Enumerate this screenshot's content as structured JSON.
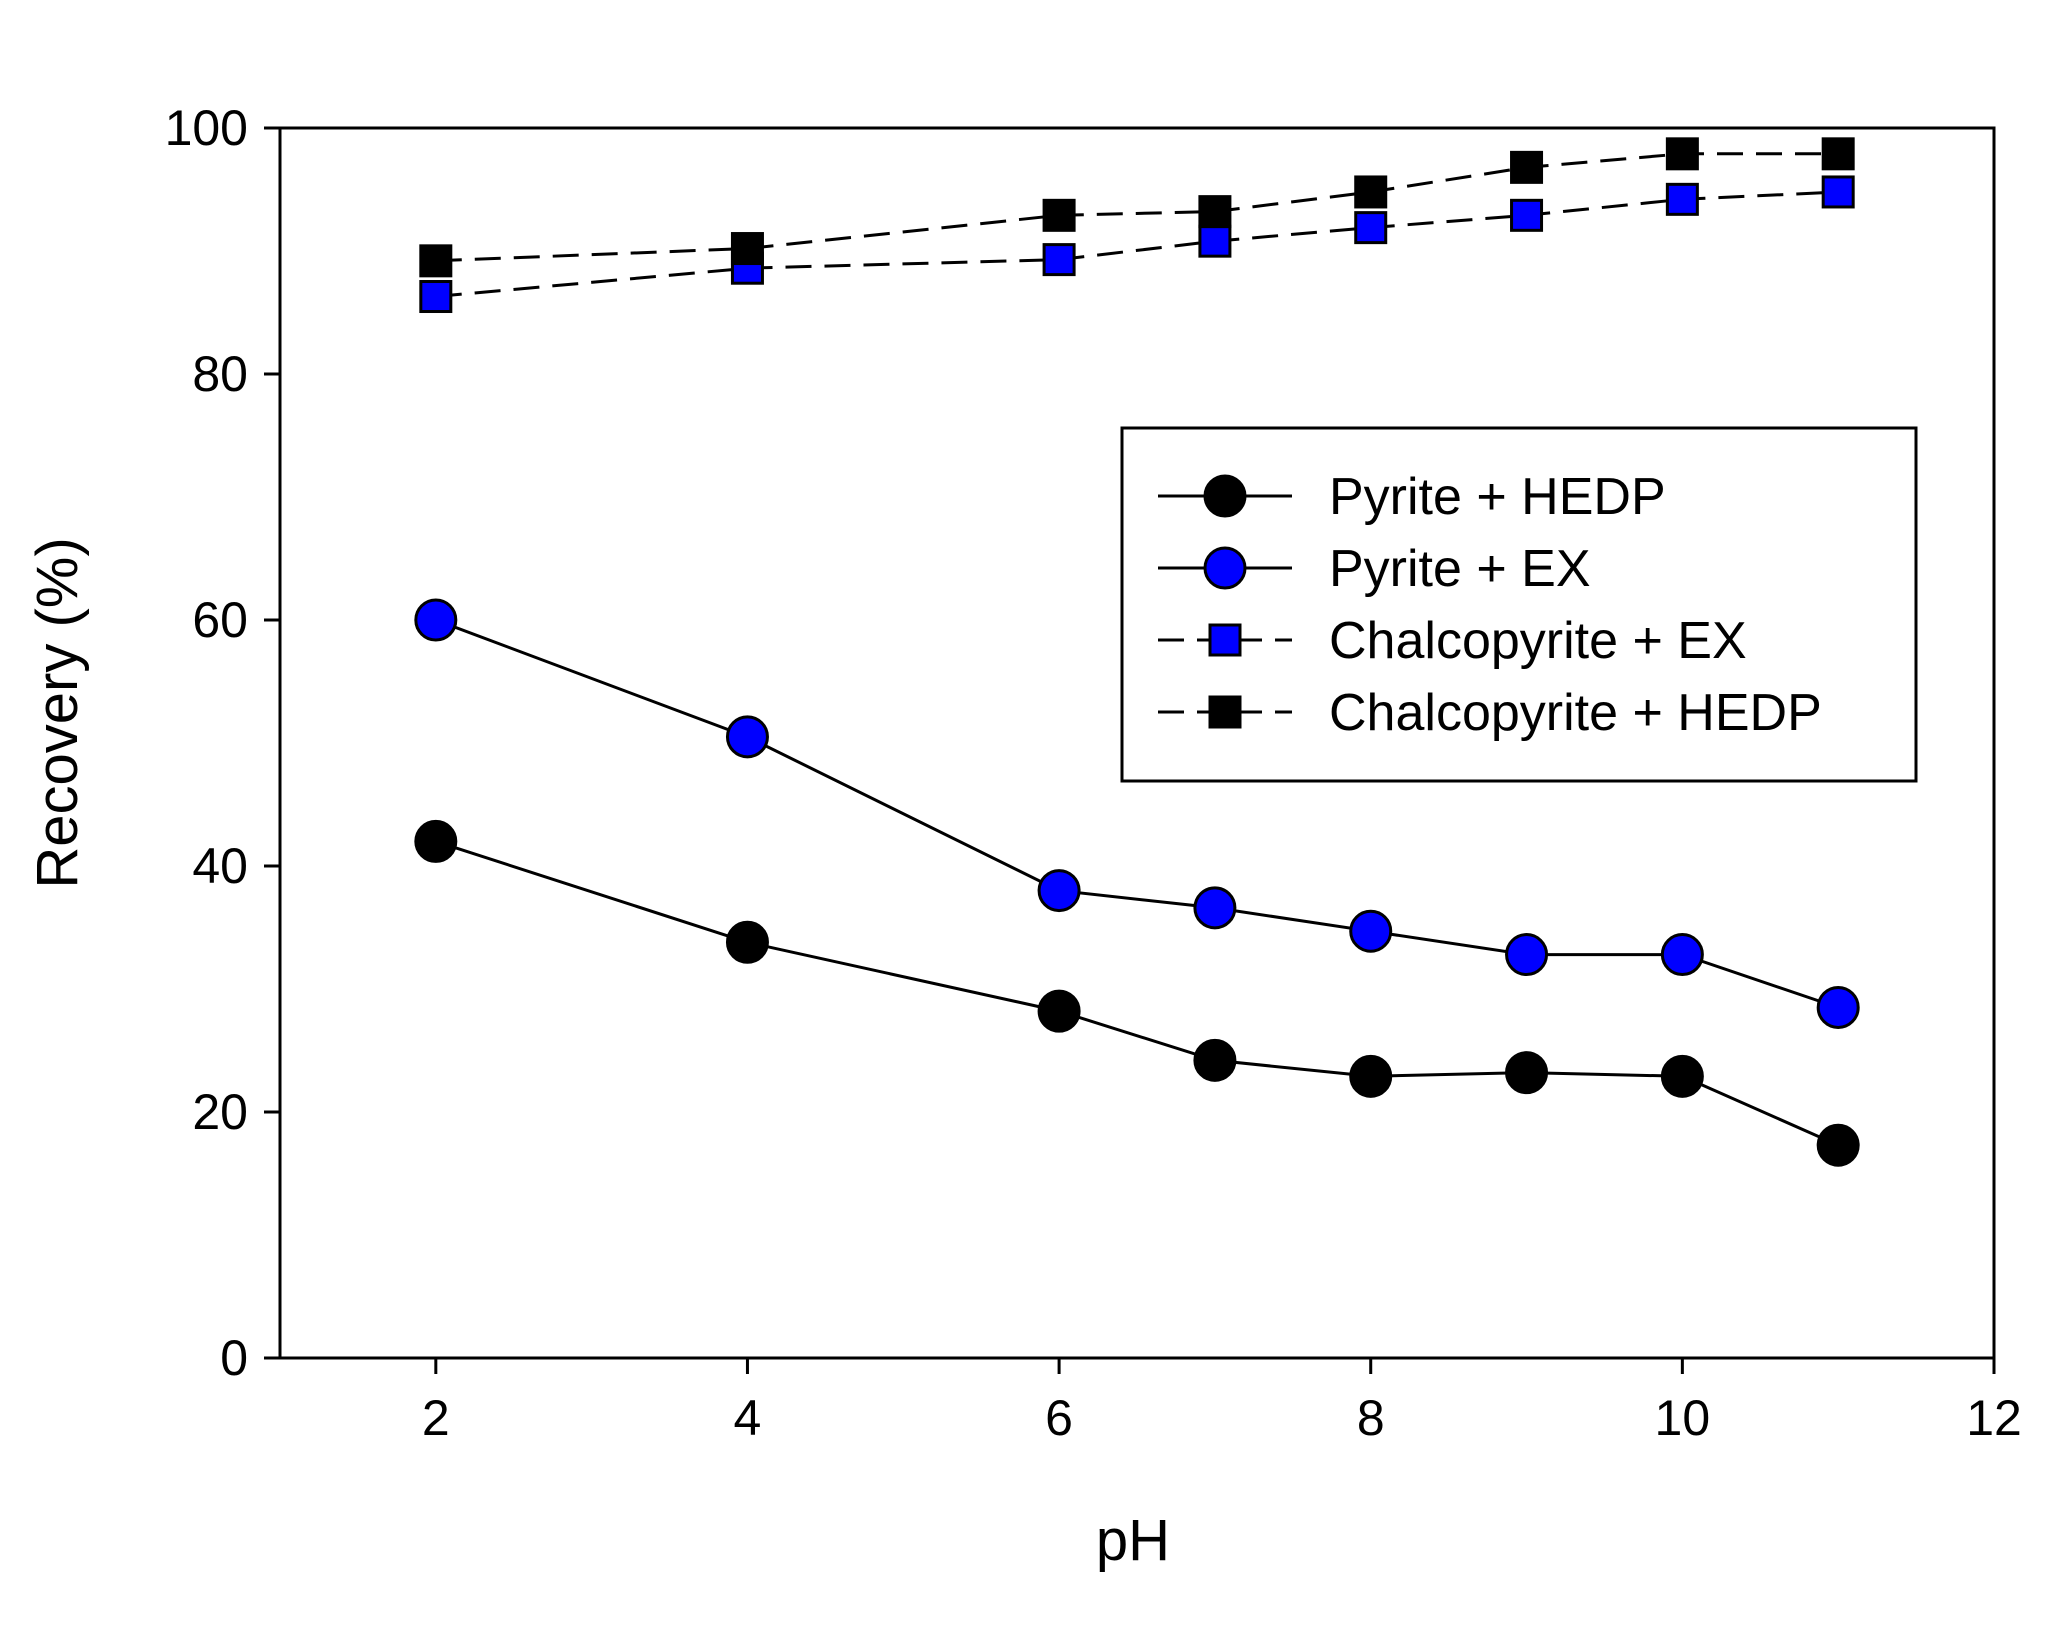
{
  "chart_data": {
    "type": "line",
    "title": "",
    "xlabel": "pH",
    "ylabel": "Recovery (%)",
    "xlim": [
      1,
      12
    ],
    "ylim": [
      0,
      100
    ],
    "xticks": [
      2,
      4,
      6,
      8,
      10,
      12
    ],
    "yticks": [
      0,
      20,
      40,
      60,
      80,
      100
    ],
    "grid": false,
    "legend_position": "right-middle",
    "series": [
      {
        "name": "Pyrite + HEDP",
        "marker": "circle",
        "line_style": "solid",
        "fill": "#000000",
        "x": [
          2,
          4,
          6,
          7,
          8,
          9,
          10,
          11
        ],
        "y": [
          42,
          33.8,
          28.2,
          24.2,
          22.9,
          23.2,
          22.9,
          17.3
        ]
      },
      {
        "name": "Pyrite + EX",
        "marker": "circle",
        "line_style": "solid",
        "fill": "#0000ff",
        "x": [
          2,
          4,
          6,
          7,
          8,
          9,
          10,
          11
        ],
        "y": [
          60,
          50.5,
          38,
          36.6,
          34.7,
          32.8,
          32.8,
          28.5
        ]
      },
      {
        "name": "Chalcopyrite + EX",
        "marker": "square",
        "line_style": "dashed",
        "fill": "#0000ff",
        "x": [
          2,
          4,
          6,
          7,
          8,
          9,
          10,
          11
        ],
        "y": [
          86.3,
          88.6,
          89.3,
          90.8,
          91.9,
          92.9,
          94.2,
          94.8
        ]
      },
      {
        "name": "Chalcopyrite + HEDP",
        "marker": "square",
        "line_style": "dashed",
        "fill": "#000000",
        "x": [
          2,
          4,
          6,
          7,
          8,
          9,
          10,
          11
        ],
        "y": [
          89.2,
          90.2,
          92.9,
          93.2,
          94.8,
          96.8,
          97.9,
          97.9
        ]
      }
    ]
  }
}
